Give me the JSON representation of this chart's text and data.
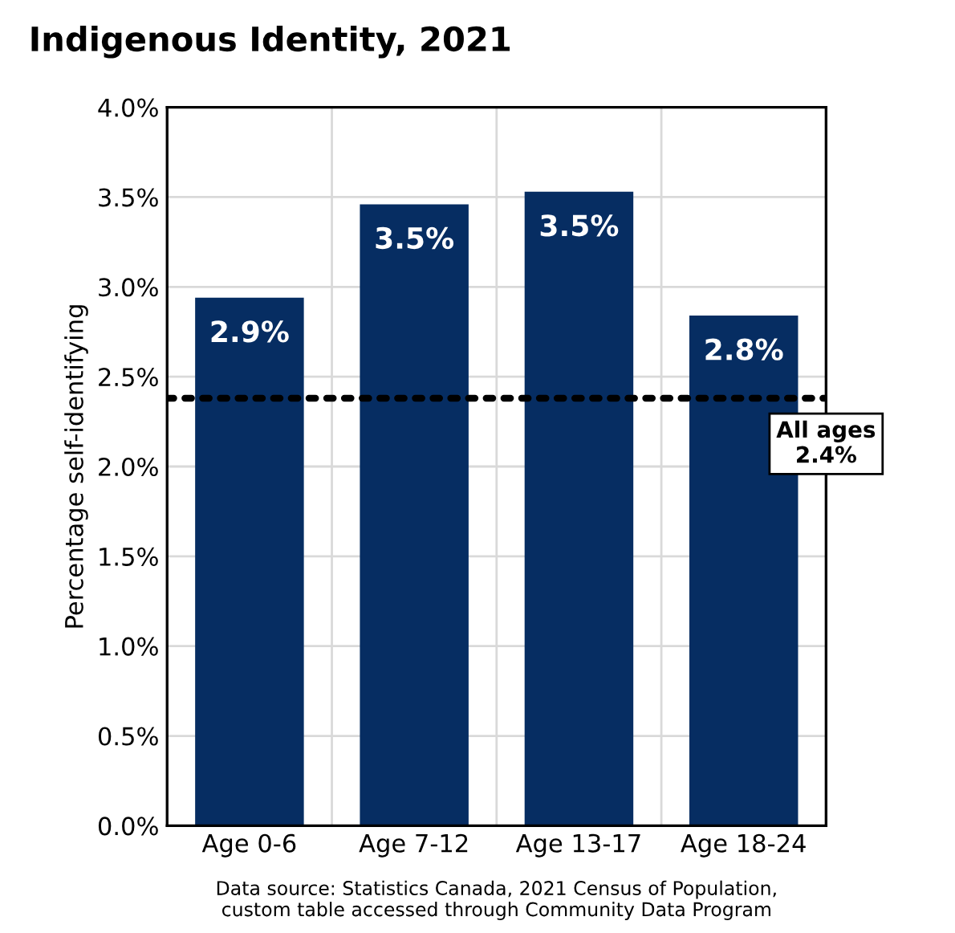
{
  "chart_data": {
    "type": "bar",
    "title": "Indigenous Identity, 2021",
    "ylabel": "Percentage self-identifying",
    "categories": [
      "Age 0-6",
      "Age 7-12",
      "Age 13-17",
      "Age 18-24"
    ],
    "values": [
      2.94,
      3.46,
      3.53,
      2.84
    ],
    "value_labels": [
      "2.9%",
      "3.5%",
      "3.5%",
      "2.8%"
    ],
    "color": "#062d62",
    "ylim": [
      0,
      4
    ],
    "yticks": [
      {
        "value": 0,
        "label": "0.0%"
      },
      {
        "value": 0.5,
        "label": "0.5%"
      },
      {
        "value": 1,
        "label": "1.0%"
      },
      {
        "value": 1.5,
        "label": "1.5%"
      },
      {
        "value": 2,
        "label": "2.0%"
      },
      {
        "value": 2.5,
        "label": "2.5%"
      },
      {
        "value": 3,
        "label": "3.0%"
      },
      {
        "value": 3.5,
        "label": "3.5%"
      },
      {
        "value": 4,
        "label": "4.0%"
      }
    ],
    "grid": true,
    "ref_lines": [
      {
        "axis": "y",
        "value": 2.38,
        "label": "All ages\n2.4%",
        "color": "#000000",
        "line_style": "dotted"
      }
    ],
    "annotations": [
      "Data source: Statistics Canada, 2021 Census of Population,\ncustom table accessed through Community Data Program"
    ]
  }
}
